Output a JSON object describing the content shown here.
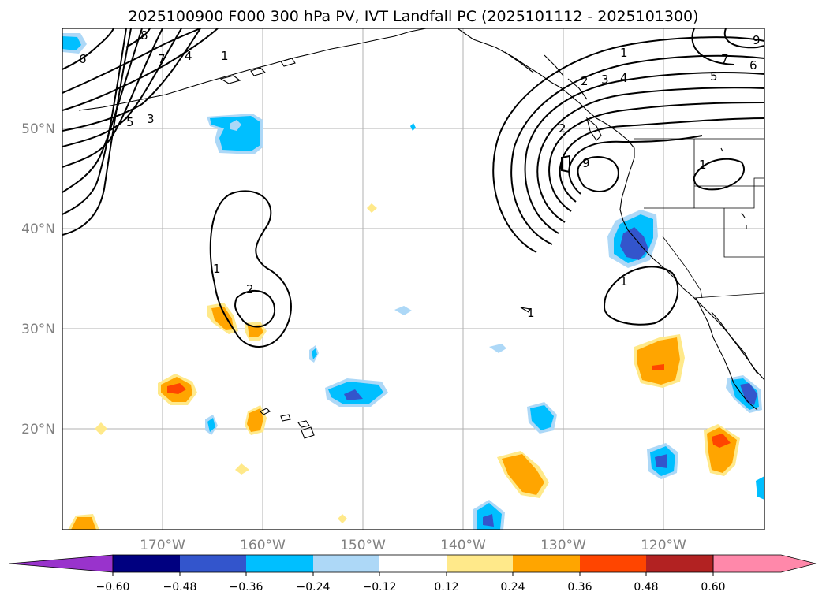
{
  "title": "2025100900 F000 300 hPa PV, IVT Landfall PC (2025101112 - 2025101300)",
  "lat_labels": [
    "50°N",
    "40°N",
    "30°N",
    "20°N"
  ],
  "lon_labels": [
    "170°W",
    "160°W",
    "150°W",
    "140°W",
    "130°W",
    "120°W"
  ],
  "colorbar": {
    "ticks": [
      "−0.60",
      "−0.48",
      "−0.36",
      "−0.24",
      "−0.12",
      "0.12",
      "0.24",
      "0.36",
      "0.48",
      "0.60"
    ],
    "colors": [
      "#9933cc",
      "#000080",
      "#3355cc",
      "#00bfff",
      "#add8f7",
      "#ffffff",
      "#ffe98a",
      "#ffa500",
      "#ff4500",
      "#b22222",
      "#ff88aa",
      "#ff88aa"
    ]
  },
  "map": {
    "extent": {
      "lon_min": 180,
      "lon_max": 110,
      "lat_min": 10,
      "lat_max": 60
    },
    "contour_labels": [
      "1",
      "2",
      "3",
      "4",
      "5",
      "6",
      "7",
      "8",
      "9",
      "1",
      "2",
      "3",
      "4",
      "5",
      "6",
      "7",
      "9",
      "1",
      "1",
      "2",
      "1",
      "1"
    ],
    "colors": {
      "deep_blue": "#3355cc",
      "blue": "#00bfff",
      "light_blue": "#add8f7",
      "yellow": "#ffe98a",
      "orange": "#ffa500",
      "red_orange": "#ff4500"
    }
  }
}
